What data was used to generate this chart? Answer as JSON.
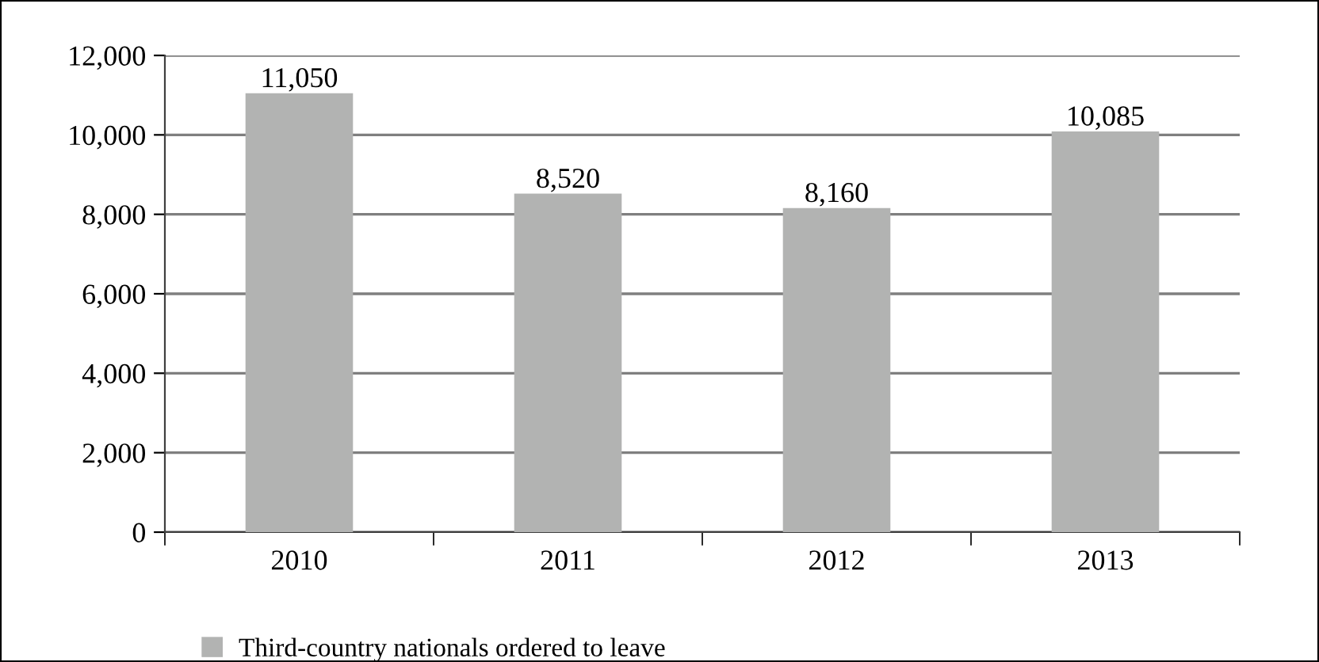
{
  "chart_data": {
    "type": "bar",
    "categories": [
      "2010",
      "2011",
      "2012",
      "2013"
    ],
    "series": [
      {
        "name": "Third-country nationals ordered to leave",
        "color": "#b2b3b2",
        "values": [
          11050,
          8520,
          8160,
          10085
        ],
        "value_labels": [
          "11,050",
          "8,520",
          "8,160",
          "10,085"
        ]
      }
    ],
    "ylim": [
      0,
      12000
    ],
    "yticks": [
      {
        "value": 0,
        "label": "0"
      },
      {
        "value": 2000,
        "label": "2,000"
      },
      {
        "value": 4000,
        "label": "4,000"
      },
      {
        "value": 6000,
        "label": "6,000"
      },
      {
        "value": 8000,
        "label": "8,000"
      },
      {
        "value": 10000,
        "label": "10,000"
      },
      {
        "value": 12000,
        "label": "12,000"
      }
    ],
    "grid": "y",
    "legend": "bottom"
  }
}
